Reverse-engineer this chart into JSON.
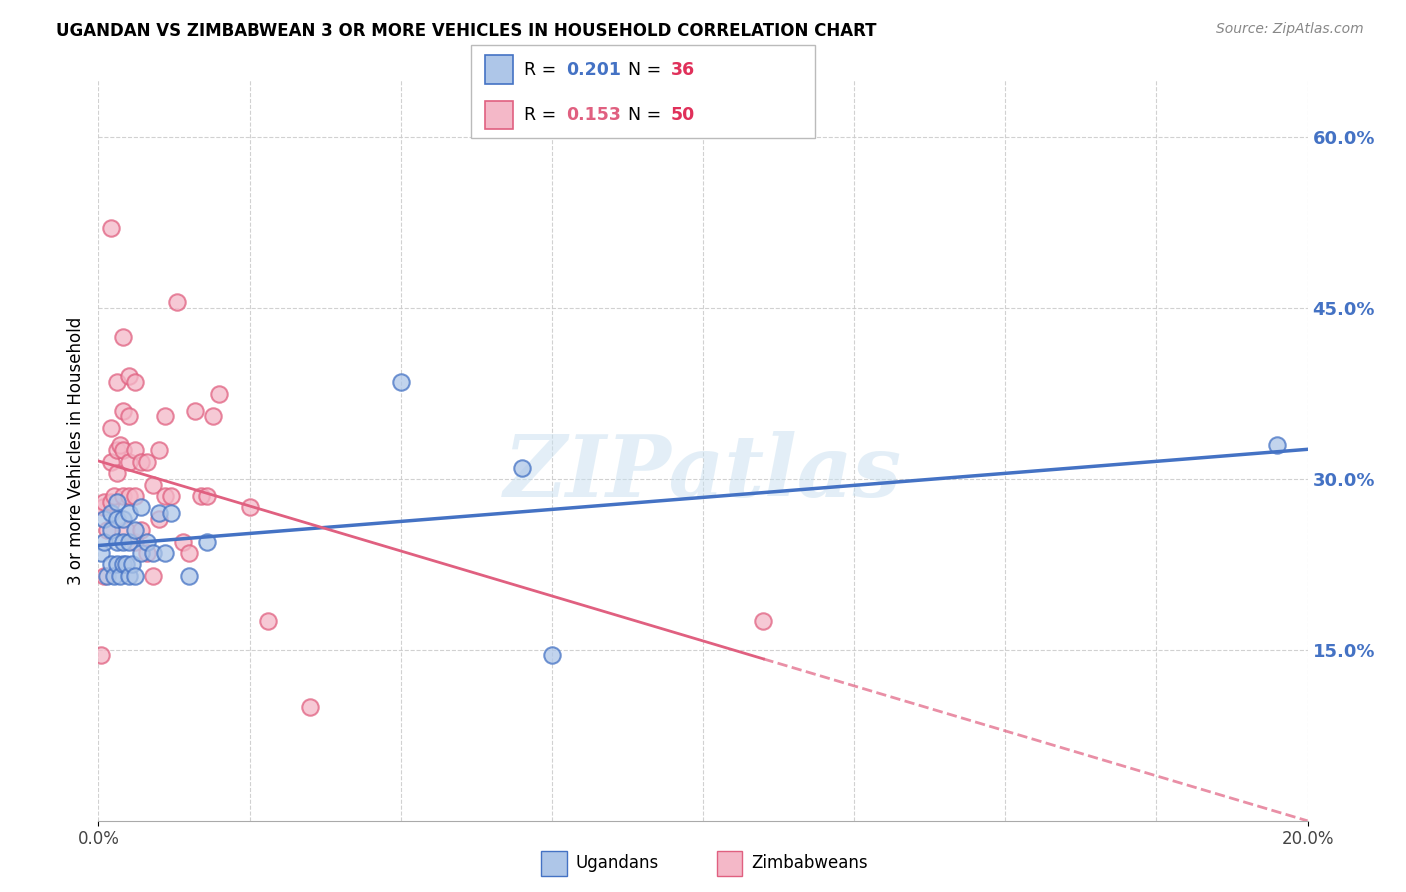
{
  "title": "UGANDAN VS ZIMBABWEAN 3 OR MORE VEHICLES IN HOUSEHOLD CORRELATION CHART",
  "source": "Source: ZipAtlas.com",
  "ylabel": "3 or more Vehicles in Household",
  "ugandan_R": 0.201,
  "ugandan_N": 36,
  "zimbabwean_R": 0.153,
  "zimbabwean_N": 50,
  "ugandan_color": "#aec6e8",
  "zimbabwean_color": "#f4b8c8",
  "ugandan_line_color": "#4472c4",
  "zimbabwean_line_color": "#e06080",
  "right_axis_color": "#4472c4",
  "legend_R_color": "#4472c4",
  "legend_N_color": "#e0305a",
  "xlim": [
    0.0,
    0.2
  ],
  "ylim": [
    0.0,
    0.65
  ],
  "xtick_positions": [
    0.0,
    0.2
  ],
  "xtick_labels": [
    "0.0%",
    "20.0%"
  ],
  "yticks_right": [
    0.15,
    0.3,
    0.45,
    0.6
  ],
  "ytick_labels_right": [
    "15.0%",
    "30.0%",
    "45.0%",
    "60.0%"
  ],
  "grid_yticks": [
    0.15,
    0.3,
    0.45,
    0.6
  ],
  "grid_xticks": [
    0.0,
    0.025,
    0.05,
    0.075,
    0.1,
    0.125,
    0.15,
    0.175,
    0.2
  ],
  "ugandan_x": [
    0.0005,
    0.001,
    0.001,
    0.0015,
    0.002,
    0.002,
    0.002,
    0.0025,
    0.003,
    0.003,
    0.003,
    0.003,
    0.0035,
    0.004,
    0.004,
    0.004,
    0.0045,
    0.005,
    0.005,
    0.005,
    0.0055,
    0.006,
    0.006,
    0.007,
    0.007,
    0.008,
    0.009,
    0.01,
    0.011,
    0.012,
    0.015,
    0.018,
    0.05,
    0.07,
    0.075,
    0.195
  ],
  "ugandan_y": [
    0.235,
    0.245,
    0.265,
    0.215,
    0.225,
    0.255,
    0.27,
    0.215,
    0.225,
    0.245,
    0.265,
    0.28,
    0.215,
    0.225,
    0.245,
    0.265,
    0.225,
    0.215,
    0.245,
    0.27,
    0.225,
    0.215,
    0.255,
    0.235,
    0.275,
    0.245,
    0.235,
    0.27,
    0.235,
    0.27,
    0.215,
    0.245,
    0.385,
    0.31,
    0.145,
    0.33
  ],
  "zimbabwean_x": [
    0.0005,
    0.0008,
    0.001,
    0.001,
    0.0015,
    0.002,
    0.002,
    0.002,
    0.002,
    0.0025,
    0.003,
    0.003,
    0.003,
    0.0035,
    0.004,
    0.004,
    0.004,
    0.004,
    0.0045,
    0.005,
    0.005,
    0.005,
    0.005,
    0.006,
    0.006,
    0.006,
    0.006,
    0.007,
    0.007,
    0.008,
    0.008,
    0.009,
    0.009,
    0.01,
    0.01,
    0.011,
    0.011,
    0.012,
    0.013,
    0.014,
    0.015,
    0.016,
    0.017,
    0.018,
    0.019,
    0.02,
    0.025,
    0.028,
    0.035,
    0.11
  ],
  "zimbabwean_y": [
    0.145,
    0.275,
    0.215,
    0.28,
    0.255,
    0.28,
    0.315,
    0.345,
    0.52,
    0.285,
    0.305,
    0.325,
    0.385,
    0.33,
    0.285,
    0.325,
    0.36,
    0.425,
    0.255,
    0.285,
    0.315,
    0.355,
    0.39,
    0.245,
    0.285,
    0.325,
    0.385,
    0.255,
    0.315,
    0.235,
    0.315,
    0.215,
    0.295,
    0.265,
    0.325,
    0.285,
    0.355,
    0.285,
    0.455,
    0.245,
    0.235,
    0.36,
    0.285,
    0.285,
    0.355,
    0.375,
    0.275,
    0.175,
    0.1,
    0.175
  ],
  "watermark_text": "ZIPatlas",
  "background_color": "#FFFFFF",
  "grid_color": "#CCCCCC"
}
